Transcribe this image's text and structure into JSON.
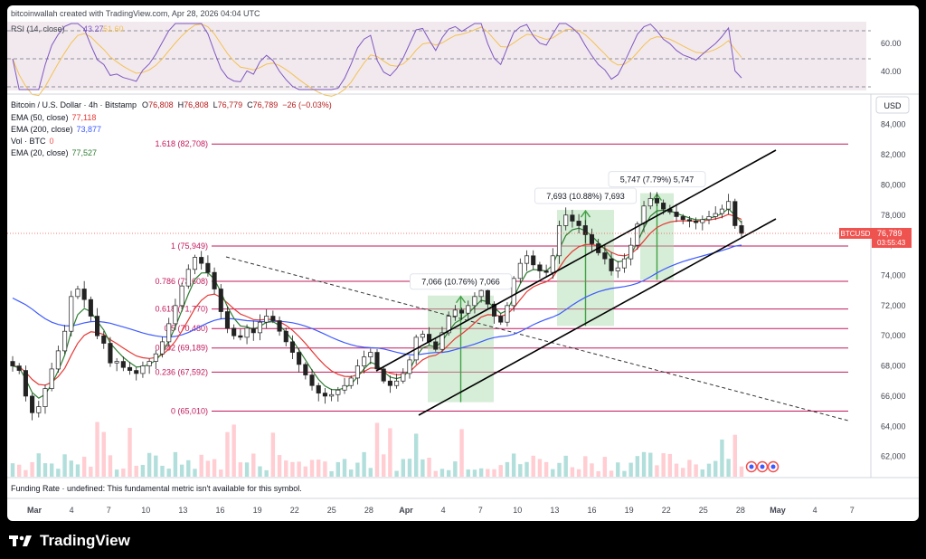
{
  "header": {
    "attribution": "bitcoinwallah created with TradingView.com, Apr 28, 2026 04:04 UTC"
  },
  "rsi": {
    "label": "RSI (14, close)",
    "value": "43.27",
    "value2": "51.60",
    "ticks": [
      "60.00",
      "40.00"
    ]
  },
  "legend": {
    "symbol": "Bitcoin / U.S. Dollar · 4h · Bitstamp",
    "o_lbl": "O",
    "o": "76,808",
    "h_lbl": "H",
    "h": "76,808",
    "l_lbl": "L",
    "l": "76,779",
    "c_lbl": "C",
    "c": "76,789",
    "chg": "−26 (−0.03%)",
    "ema50_lbl": "EMA (50, close)",
    "ema50": "77,118",
    "ema200_lbl": "EMA (200, close)",
    "ema200": "73,877",
    "vol_lbl": "Vol · BTC",
    "vol": "0",
    "ema20_lbl": "EMA (20, close)",
    "ema20": "77,527"
  },
  "currency": "USD",
  "price_tag": {
    "symbol": "BTCUSD",
    "value": "76,789",
    "countdown": "03:55:43"
  },
  "funding": "Funding Rate · undefined: This fundamental metric isn't available for this symbol.",
  "brand": "TradingView",
  "colors": {
    "up": "#26a69a",
    "down": "#ef5350",
    "fib": "#c2185b",
    "ema20": "#2e7d32",
    "ema50": "#e53935",
    "ema200": "#3d5afe",
    "rsi": "#7e57c2",
    "box": "#a5d6a7",
    "arrow": "#43a047"
  },
  "chart_data": {
    "type": "candlestick",
    "title": "Bitcoin / U.S. Dollar · 4h · Bitstamp",
    "ylim": [
      60600,
      85900
    ],
    "y_ticks": [
      "84,000",
      "82,000",
      "80,000",
      "78,000",
      "76,000",
      "74,000",
      "72,000",
      "70,000",
      "68,000",
      "66,000",
      "64,000",
      "62,000"
    ],
    "x_ticks": [
      "Mar",
      "4",
      "7",
      "10",
      "13",
      "16",
      "19",
      "22",
      "25",
      "28",
      "Apr",
      "4",
      "7",
      "10",
      "13",
      "16",
      "19",
      "22",
      "25",
      "28",
      "May",
      "4",
      "7"
    ],
    "fib_levels": [
      {
        "ratio": "1.618",
        "value": 82708,
        "label": "1.618 (82,708)"
      },
      {
        "ratio": "1",
        "value": 75949,
        "label": "1 (75,949)"
      },
      {
        "ratio": "0.786",
        "value": 73608,
        "label": "0.786 (73,608)"
      },
      {
        "ratio": "0.618",
        "value": 71770,
        "label": "0.618 (71,770)"
      },
      {
        "ratio": "0.5",
        "value": 70480,
        "label": "0.5 (70,480)"
      },
      {
        "ratio": "0.382",
        "value": 69189,
        "label": "0.382 (69,189)"
      },
      {
        "ratio": "0.236",
        "value": 67592,
        "label": "0.236 (67,592)"
      },
      {
        "ratio": "0",
        "value": 65010,
        "label": "0 (65,010)"
      }
    ],
    "measurements": [
      {
        "label": "7,066 (10.76%) 7,066",
        "from": 65600,
        "to": 72666
      },
      {
        "label": "7,693 (10.88%) 7,693",
        "from": 70650,
        "to": 78343
      },
      {
        "label": "5,747 (7.79%) 5,747",
        "from": 73700,
        "to": 79447
      }
    ],
    "last_price": 76789,
    "close_series": [
      68000,
      67700,
      66000,
      64900,
      65300,
      66500,
      67800,
      69000,
      70300,
      72600,
      73100,
      72400,
      71300,
      70000,
      69500,
      68200,
      68300,
      67900,
      67700,
      67500,
      68000,
      68300,
      68800,
      69600,
      70800,
      72000,
      73300,
      74400,
      75200,
      74800,
      74200,
      73100,
      71600,
      70500,
      70000,
      69900,
      70500,
      70200,
      70900,
      71300,
      71000,
      70300,
      69600,
      68900,
      68100,
      67400,
      66700,
      66200,
      66000,
      66100,
      66400,
      66700,
      67200,
      68000,
      68600,
      68900,
      67800,
      67000,
      66700,
      67000,
      67500,
      68400,
      69900,
      70100,
      69600,
      69100,
      70200,
      71300,
      71700,
      71500,
      72000,
      72600,
      73000,
      72100,
      71300,
      70900,
      72000,
      73800,
      74800,
      75300,
      74700,
      74300,
      74200,
      75300,
      77300,
      78000,
      77600,
      77300,
      76700,
      76100,
      75500,
      75100,
      74300,
      74500,
      75100,
      76000,
      77400,
      78600,
      79100,
      78800,
      78400,
      78200,
      77900,
      77700,
      77600,
      77500,
      77700,
      77900,
      78100,
      78400,
      78900,
      77300,
      76789
    ]
  }
}
